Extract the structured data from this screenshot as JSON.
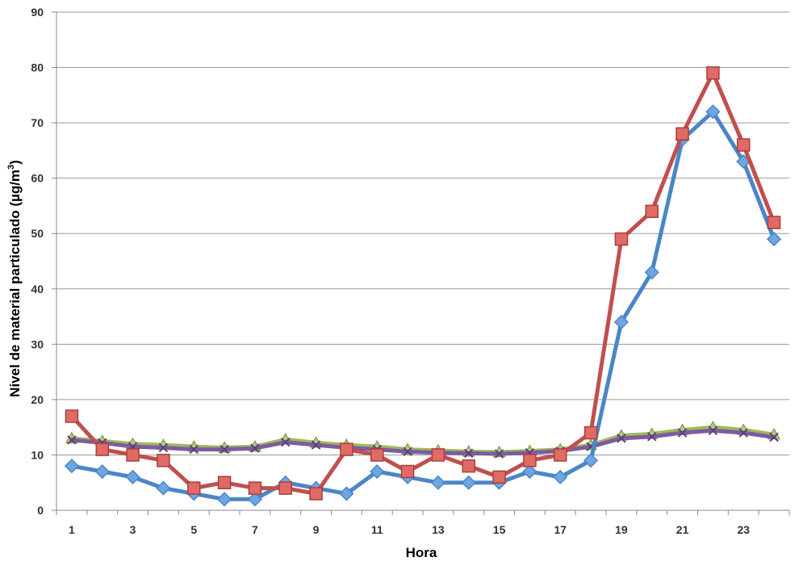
{
  "chart_data": {
    "type": "line",
    "title": "",
    "xlabel": "Hora",
    "ylabel": "Nivel de material particulado (µg/m",
    "ylabel_sup": "3",
    "ylabel_close": ")",
    "x": [
      1,
      2,
      3,
      4,
      5,
      6,
      7,
      8,
      9,
      10,
      11,
      12,
      13,
      14,
      15,
      16,
      17,
      18,
      19,
      20,
      21,
      22,
      23,
      24
    ],
    "x_tick_labels": [
      "1",
      "3",
      "5",
      "7",
      "9",
      "11",
      "13",
      "15",
      "17",
      "19",
      "21",
      "23"
    ],
    "x_tick_values": [
      1,
      3,
      5,
      7,
      9,
      11,
      13,
      15,
      17,
      19,
      21,
      23
    ],
    "ylim": [
      0,
      90
    ],
    "y_ticks": [
      0,
      10,
      20,
      30,
      40,
      50,
      60,
      70,
      80,
      90
    ],
    "grid": true,
    "legend": "none",
    "series": [
      {
        "color": "#4a86c8",
        "marker": "diamond",
        "values": [
          8,
          7,
          6,
          4,
          3,
          2,
          2,
          5,
          4,
          3,
          7,
          6,
          5,
          5,
          5,
          7,
          6,
          9,
          34,
          43,
          67,
          72,
          63,
          49
        ]
      },
      {
        "color": "#c0504d",
        "marker": "square",
        "values": [
          17,
          11,
          10,
          9,
          4,
          5,
          4,
          4,
          3,
          11,
          10,
          7,
          10,
          8,
          6,
          9,
          10,
          14,
          49,
          54,
          68,
          79,
          66,
          52
        ]
      },
      {
        "color": "#9bbb59",
        "marker": "triangle",
        "values": [
          13,
          12.5,
          12,
          11.8,
          11.5,
          11.3,
          11.5,
          12.8,
          12.2,
          11.8,
          11.5,
          11,
          10.8,
          10.6,
          10.5,
          10.7,
          11,
          11.8,
          13.5,
          13.8,
          14.5,
          15,
          14.5,
          13.7
        ]
      },
      {
        "color": "#7e5b9f",
        "marker": "x",
        "values": [
          12.7,
          12.2,
          11.5,
          11.3,
          11,
          11,
          11.2,
          12.3,
          11.8,
          11.3,
          11,
          10.6,
          10.4,
          10.3,
          10.2,
          10.4,
          10.7,
          11.5,
          13,
          13.3,
          14,
          14.4,
          14,
          13.2
        ]
      }
    ]
  }
}
